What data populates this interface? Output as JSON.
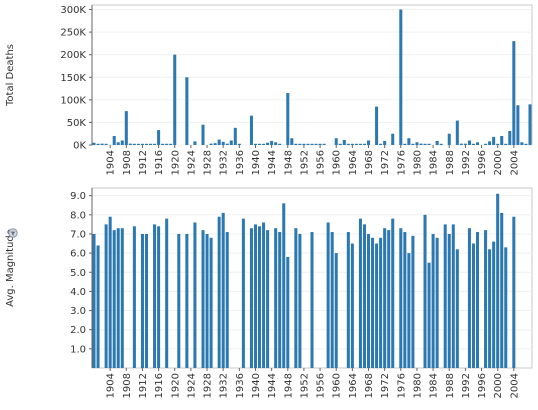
{
  "chart_data": [
    {
      "type": "bar",
      "ylabel": "Total Deaths",
      "ylim": [
        0,
        310000
      ],
      "y_ticks": [
        "0K",
        "50K",
        "100K",
        "150K",
        "200K",
        "250K",
        "300K"
      ],
      "y_tick_values": [
        0,
        50000,
        100000,
        150000,
        200000,
        250000,
        300000
      ],
      "x_ticks": [
        "1904",
        "1908",
        "1912",
        "1916",
        "1920",
        "1924",
        "1928",
        "1932",
        "1936",
        "1940",
        "1944",
        "1948",
        "1952",
        "1956",
        "1960",
        "1964",
        "1968",
        "1972",
        "1976",
        "1980",
        "1984",
        "1988",
        "1992",
        "1996",
        "2000",
        "2004"
      ],
      "series": [
        {
          "points": [
            [
              1900,
              5000
            ],
            [
              1901,
              2000
            ],
            [
              1902,
              3000
            ],
            [
              1903,
              500
            ],
            [
              1905,
              20000
            ],
            [
              1906,
              6000
            ],
            [
              1907,
              10000
            ],
            [
              1908,
              75000
            ],
            [
              1909,
              3000
            ],
            [
              1910,
              1000
            ],
            [
              1911,
              1000
            ],
            [
              1912,
              1000
            ],
            [
              1913,
              500
            ],
            [
              1914,
              500
            ],
            [
              1915,
              2000
            ],
            [
              1916,
              33000
            ],
            [
              1917,
              1000
            ],
            [
              1918,
              2000
            ],
            [
              1919,
              1000
            ],
            [
              1920,
              200000
            ],
            [
              1923,
              150000
            ],
            [
              1925,
              8000
            ],
            [
              1927,
              45000
            ],
            [
              1929,
              3000
            ],
            [
              1930,
              4000
            ],
            [
              1931,
              12000
            ],
            [
              1932,
              7000
            ],
            [
              1933,
              3000
            ],
            [
              1934,
              10000
            ],
            [
              1935,
              38000
            ],
            [
              1936,
              1000
            ],
            [
              1939,
              65000
            ],
            [
              1940,
              500
            ],
            [
              1941,
              2000
            ],
            [
              1942,
              1000
            ],
            [
              1943,
              5000
            ],
            [
              1944,
              9000
            ],
            [
              1945,
              6000
            ],
            [
              1946,
              2000
            ],
            [
              1948,
              115000
            ],
            [
              1949,
              15000
            ],
            [
              1950,
              2000
            ],
            [
              1951,
              1000
            ],
            [
              1952,
              500
            ],
            [
              1953,
              1000
            ],
            [
              1954,
              1000
            ],
            [
              1955,
              500
            ],
            [
              1956,
              1000
            ],
            [
              1957,
              2000
            ],
            [
              1960,
              15000
            ],
            [
              1961,
              1000
            ],
            [
              1962,
              11000
            ],
            [
              1963,
              2000
            ],
            [
              1964,
              500
            ],
            [
              1965,
              1000
            ],
            [
              1966,
              2000
            ],
            [
              1967,
              1000
            ],
            [
              1968,
              10000
            ],
            [
              1970,
              85000
            ],
            [
              1971,
              1000
            ],
            [
              1972,
              9000
            ],
            [
              1974,
              25000
            ],
            [
              1976,
              300000
            ],
            [
              1977,
              2000
            ],
            [
              1978,
              15000
            ],
            [
              1979,
              2000
            ],
            [
              1980,
              6000
            ],
            [
              1981,
              3000
            ],
            [
              1982,
              2000
            ],
            [
              1983,
              1000
            ],
            [
              1985,
              9000
            ],
            [
              1986,
              500
            ],
            [
              1988,
              25000
            ],
            [
              1990,
              54000
            ],
            [
              1991,
              3000
            ],
            [
              1992,
              3000
            ],
            [
              1993,
              10000
            ],
            [
              1994,
              1000
            ],
            [
              1995,
              6000
            ],
            [
              1997,
              2000
            ],
            [
              1998,
              8000
            ],
            [
              1999,
              18000
            ],
            [
              2000,
              500
            ],
            [
              2001,
              20000
            ],
            [
              2002,
              1000
            ],
            [
              2003,
              31000
            ],
            [
              2004,
              230000
            ],
            [
              2005,
              88000
            ],
            [
              2006,
              6000
            ],
            [
              2007,
              500
            ],
            [
              2008,
              90000
            ]
          ]
        }
      ]
    },
    {
      "type": "bar",
      "ylabel": "Avg. Magnitude",
      "ylim": [
        0,
        9.4
      ],
      "y_ticks": [
        "1.0",
        "2.0",
        "3.0",
        "4.0",
        "5.0",
        "6.0",
        "7.0",
        "8.0",
        "9.0"
      ],
      "y_tick_values": [
        1,
        2,
        3,
        4,
        5,
        6,
        7,
        8,
        9
      ],
      "x_ticks": [
        "1904",
        "1908",
        "1912",
        "1916",
        "1920",
        "1924",
        "1928",
        "1932",
        "1936",
        "1940",
        "1944",
        "1948",
        "1952",
        "1956",
        "1960",
        "1964",
        "1968",
        "1972",
        "1976",
        "1980",
        "1984",
        "1988",
        "1992",
        "1996",
        "2000",
        "2004"
      ],
      "series": [
        {
          "points": [
            [
              1900,
              7.0
            ],
            [
              1901,
              6.4
            ],
            [
              1903,
              7.5
            ],
            [
              1904,
              7.9
            ],
            [
              1905,
              7.2
            ],
            [
              1906,
              7.3
            ],
            [
              1907,
              7.3
            ],
            [
              1910,
              7.4
            ],
            [
              1912,
              7.0
            ],
            [
              1913,
              7.0
            ],
            [
              1915,
              7.5
            ],
            [
              1916,
              7.4
            ],
            [
              1918,
              7.8
            ],
            [
              1921,
              7.0
            ],
            [
              1923,
              7.0
            ],
            [
              1925,
              7.6
            ],
            [
              1927,
              7.2
            ],
            [
              1928,
              7.0
            ],
            [
              1929,
              6.8
            ],
            [
              1931,
              7.9
            ],
            [
              1932,
              8.1
            ],
            [
              1933,
              7.1
            ],
            [
              1937,
              7.8
            ],
            [
              1939,
              7.3
            ],
            [
              1940,
              7.5
            ],
            [
              1941,
              7.4
            ],
            [
              1942,
              7.6
            ],
            [
              1943,
              7.2
            ],
            [
              1945,
              7.3
            ],
            [
              1946,
              7.1
            ],
            [
              1947,
              8.6
            ],
            [
              1948,
              5.8
            ],
            [
              1950,
              7.3
            ],
            [
              1951,
              7.0
            ],
            [
              1954,
              7.1
            ],
            [
              1958,
              7.6
            ],
            [
              1959,
              7.1
            ],
            [
              1960,
              6.0
            ],
            [
              1963,
              7.1
            ],
            [
              1964,
              6.5
            ],
            [
              1966,
              7.8
            ],
            [
              1967,
              7.5
            ],
            [
              1968,
              7.0
            ],
            [
              1969,
              6.8
            ],
            [
              1970,
              6.5
            ],
            [
              1971,
              6.8
            ],
            [
              1972,
              7.3
            ],
            [
              1973,
              7.2
            ],
            [
              1974,
              7.8
            ],
            [
              1976,
              7.3
            ],
            [
              1977,
              7.1
            ],
            [
              1978,
              6.0
            ],
            [
              1979,
              6.9
            ],
            [
              1982,
              8.0
            ],
            [
              1983,
              5.5
            ],
            [
              1984,
              7.0
            ],
            [
              1985,
              6.8
            ],
            [
              1987,
              7.5
            ],
            [
              1988,
              7.0
            ],
            [
              1989,
              7.5
            ],
            [
              1990,
              6.2
            ],
            [
              1993,
              7.3
            ],
            [
              1994,
              6.5
            ],
            [
              1995,
              7.1
            ],
            [
              1997,
              7.2
            ],
            [
              1998,
              6.2
            ],
            [
              1999,
              6.6
            ],
            [
              2000,
              9.1
            ],
            [
              2001,
              8.1
            ],
            [
              2002,
              6.3
            ],
            [
              2004,
              7.9
            ]
          ]
        }
      ]
    }
  ]
}
